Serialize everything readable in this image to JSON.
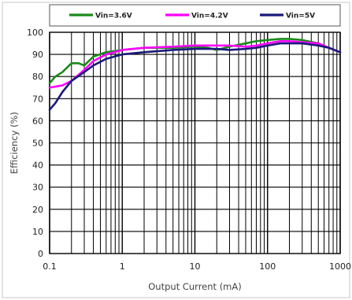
{
  "chart_data": {
    "type": "line",
    "title": "",
    "xlabel": "Output Current (mA)",
    "ylabel": "Efficiency (%)",
    "x_scale": "log",
    "xlim": [
      0.1,
      1000
    ],
    "ylim": [
      0,
      100
    ],
    "x_ticks": [
      0.1,
      1,
      10,
      100,
      1000
    ],
    "x_tick_labels": [
      "0.1",
      "1",
      "10",
      "100",
      "1000"
    ],
    "y_ticks": [
      0,
      10,
      20,
      30,
      40,
      50,
      60,
      70,
      80,
      90,
      100
    ],
    "y_tick_labels": [
      "0",
      "10",
      "20",
      "30",
      "40",
      "50",
      "60",
      "70",
      "80",
      "90",
      "100"
    ],
    "grid": true,
    "legend_position": "top",
    "series": [
      {
        "name": "Vin=3.6V",
        "color": "#1a8a1a",
        "x": [
          0.1,
          0.12,
          0.15,
          0.2,
          0.25,
          0.3,
          0.4,
          0.6,
          1,
          2,
          5,
          10,
          15,
          20,
          30,
          50,
          70,
          100,
          150,
          200,
          300,
          500,
          700,
          1000
        ],
        "y": [
          77,
          80,
          82,
          86,
          86,
          85,
          89,
          91,
          92,
          93,
          93,
          93.5,
          93,
          92,
          93.5,
          95,
          96,
          96.5,
          97,
          97,
          96.5,
          95,
          93,
          91
        ]
      },
      {
        "name": "Vin=4.2V",
        "color": "#ff00ff",
        "x": [
          0.1,
          0.15,
          0.2,
          0.3,
          0.4,
          0.6,
          1,
          2,
          5,
          10,
          20,
          30,
          50,
          70,
          100,
          150,
          200,
          300,
          500,
          700,
          1000
        ],
        "y": [
          75,
          76,
          78,
          83,
          87,
          90,
          92,
          93,
          93.5,
          94,
          94,
          94,
          93.5,
          94,
          95,
          96,
          96,
          95.5,
          95,
          93,
          91
        ]
      },
      {
        "name": "Vin=5V",
        "color": "#1a1a7a",
        "x": [
          0.1,
          0.12,
          0.15,
          0.2,
          0.3,
          0.4,
          0.6,
          1,
          2,
          5,
          10,
          20,
          30,
          50,
          70,
          100,
          150,
          200,
          300,
          500,
          700,
          1000
        ],
        "y": [
          65,
          68,
          73,
          78,
          82,
          85,
          88,
          90,
          91,
          92,
          92.5,
          92.5,
          92,
          92.5,
          93,
          94,
          95,
          95,
          95,
          94,
          93,
          91
        ]
      }
    ]
  }
}
